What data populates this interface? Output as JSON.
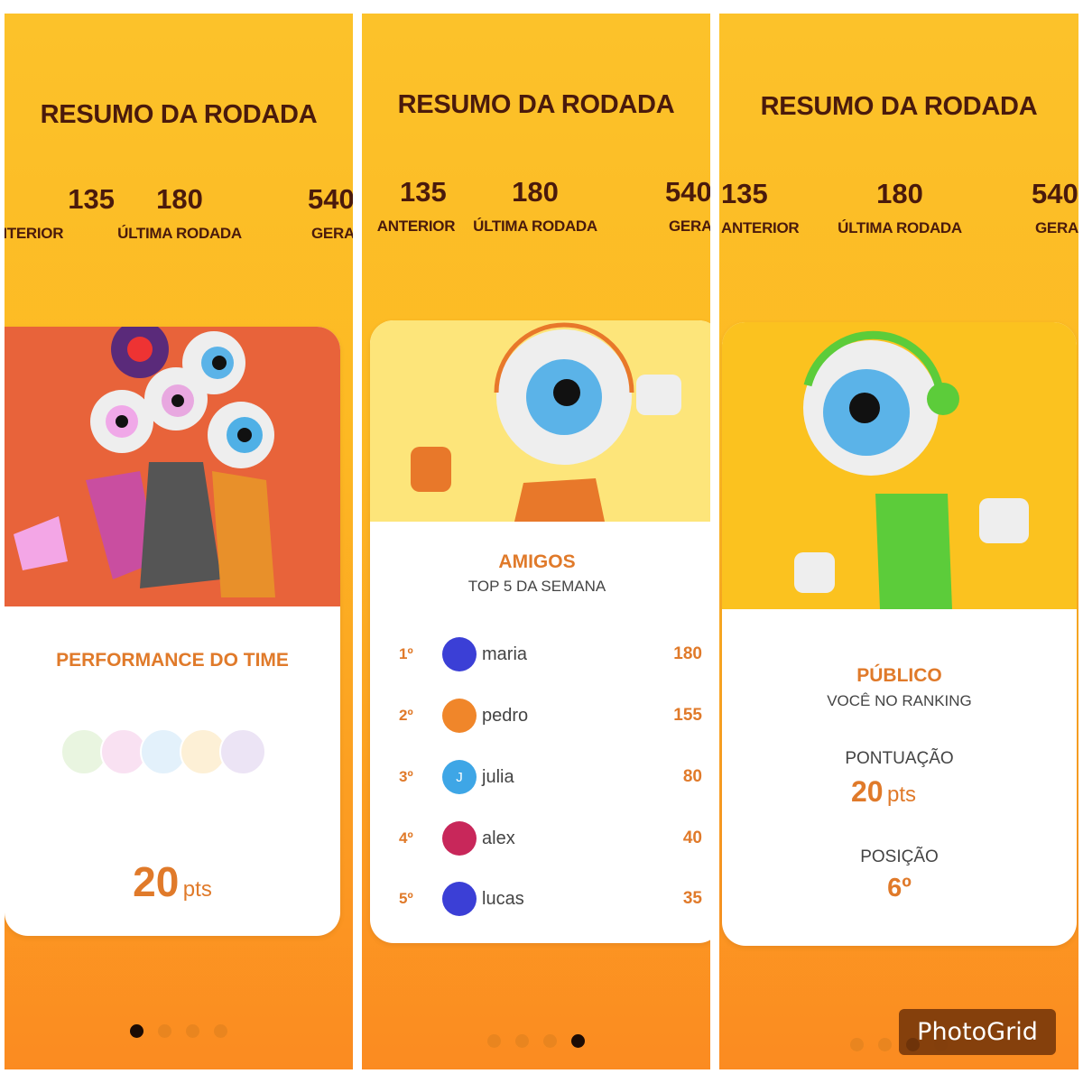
{
  "header": {
    "title": "RESUMO DA RODADA"
  },
  "stats": [
    {
      "value": "135",
      "label": "ANTERIOR"
    },
    {
      "value": "180",
      "label": "ÚLTIMA RODADA"
    },
    {
      "value": "540",
      "label": "GERAL"
    }
  ],
  "slides": {
    "team": {
      "title": "PERFORMANCE DO TIME",
      "points": "20",
      "unit": "pts"
    },
    "friends": {
      "title": "AMIGOS",
      "subtitle": "TOP 5 DA SEMANA",
      "ranking": [
        {
          "pos": "1º",
          "name": "maria",
          "score": "180",
          "avatar_color": "#3b3fd6"
        },
        {
          "pos": "2º",
          "name": "pedro",
          "score": "155",
          "avatar_color": "#f0862a"
        },
        {
          "pos": "3º",
          "name": "julia",
          "score": "80",
          "avatar_color": "#3ea6e6",
          "initial": "J"
        },
        {
          "pos": "4º",
          "name": "alex",
          "score": "40",
          "avatar_color": "#c8275a"
        },
        {
          "pos": "5º",
          "name": "lucas",
          "score": "35",
          "avatar_color": "#3b3fd6"
        }
      ]
    },
    "public": {
      "title": "PÚBLICO",
      "subtitle": "VOCÊ NO RANKING",
      "score_label": "PONTUAÇÃO",
      "points": "20",
      "unit": "pts",
      "position_label": "POSIÇÃO",
      "position": "6º"
    }
  },
  "pagination": {
    "total": 4,
    "active_per_panel": [
      1,
      4,
      3
    ]
  },
  "colors": {
    "accent": "#e07a2a",
    "dark": "#4a1a0c",
    "card1_hero": "#e8633a",
    "card2_hero": "#fde57a",
    "card3_hero": "#fbc21f"
  },
  "watermark": "PhotoGrid"
}
